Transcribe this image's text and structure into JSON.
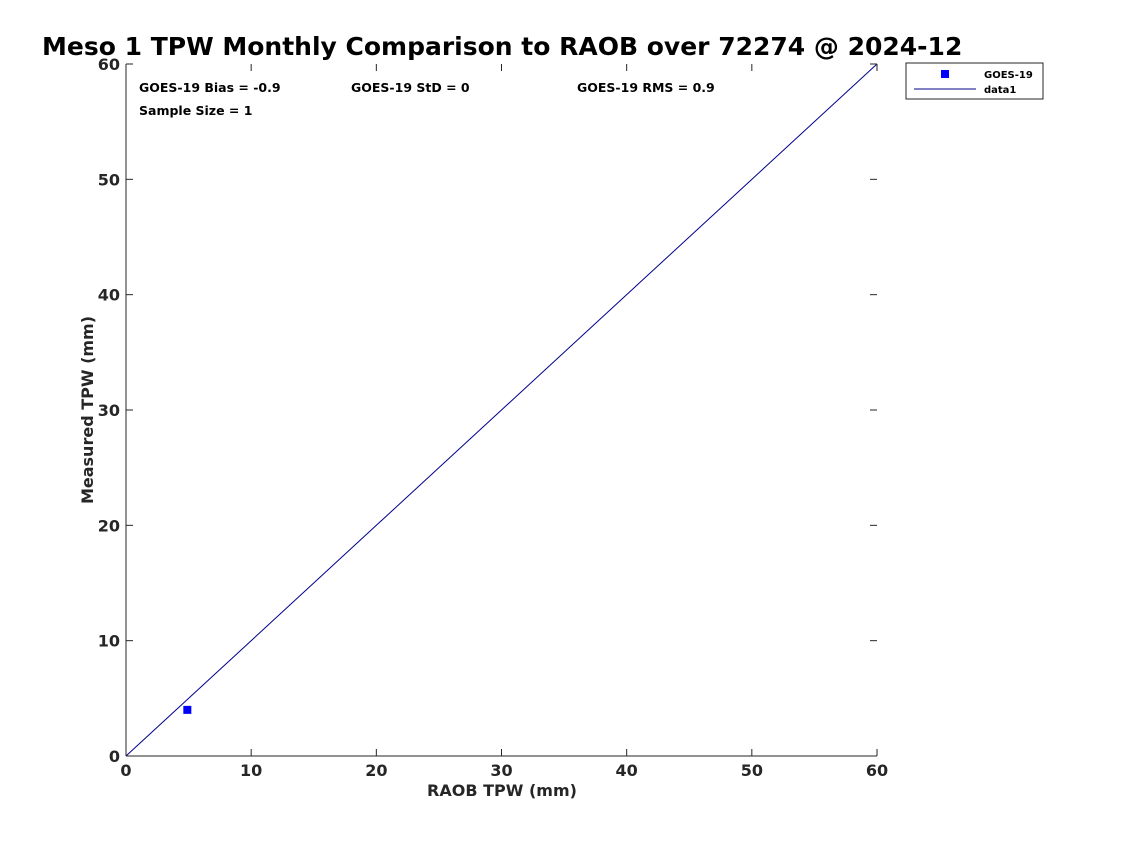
{
  "chart_data": {
    "type": "scatter",
    "title": "Meso 1 TPW Monthly Comparison to RAOB over 72274 @ 2024-12",
    "xlabel": "RAOB TPW (mm)",
    "ylabel": "Measured TPW (mm)",
    "xlim": [
      0,
      60
    ],
    "ylim": [
      0,
      60
    ],
    "xticks": [
      "0",
      "10",
      "20",
      "30",
      "40",
      "50",
      "60"
    ],
    "yticks": [
      "0",
      "10",
      "20",
      "30",
      "40",
      "50",
      "60"
    ],
    "grid": false,
    "legend_position": "outside top-right",
    "annotations": [
      "GOES-19 Bias = -0.9",
      "GOES-19 StD = 0",
      "GOES-19 RMS = 0.9",
      "Sample Size = 1"
    ],
    "series": [
      {
        "name": "GOES-19",
        "kind": "scatter",
        "marker": "square",
        "color": "#0000ff",
        "points": [
          {
            "x": 4.9,
            "y": 4.0
          }
        ]
      },
      {
        "name": "data1",
        "kind": "line",
        "color": "#00008b",
        "points": [
          {
            "x": 0,
            "y": 0
          },
          {
            "x": 60,
            "y": 60
          }
        ]
      }
    ]
  }
}
